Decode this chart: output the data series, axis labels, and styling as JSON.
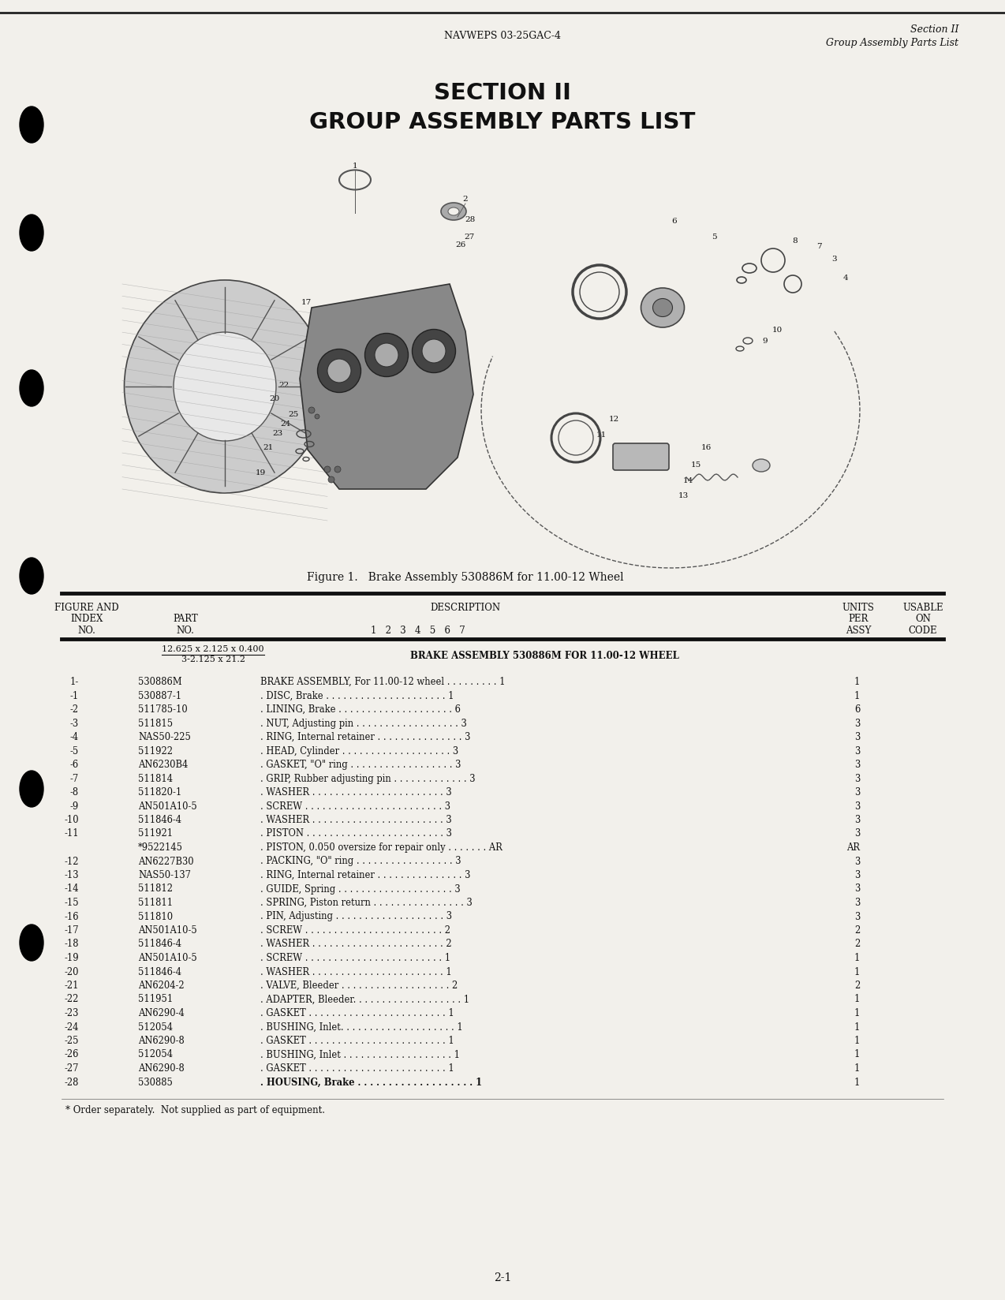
{
  "header_left": "NAVWEPS 03-25GAC-4",
  "header_right_line1": "Section II",
  "header_right_line2": "Group Assembly Parts List",
  "section_title_line1": "SECTION II",
  "section_title_line2": "GROUP ASSEMBLY PARTS LIST",
  "figure_caption": "Figure 1.   Brake Assembly 530886M for 11.00-12 Wheel",
  "table_col1_lines": [
    "FIGURE AND",
    "INDEX",
    "NO."
  ],
  "table_col2_lines": [
    "PART",
    "NO."
  ],
  "table_col3_line": "DESCRIPTION",
  "table_col3_sub": "1   2   3   4   5   6   7",
  "table_col4_lines": [
    "UNITS",
    "PER",
    "ASSY"
  ],
  "table_col5_lines": [
    "USABLE",
    "ON",
    "CODE"
  ],
  "assembly_header_line1": "12.625 x 2.125 x 0.400",
  "assembly_header_line2": "3-2.125 x 21.2",
  "assembly_header_desc": "BRAKE ASSEMBLY 530886M FOR 11.00-12 WHEEL",
  "parts": [
    {
      "index": "1-",
      "part": "530886M",
      "desc": "BRAKE ASSEMBLY, For 11.00-12 wheel . . . . . . . . . 1",
      "bold": false,
      "units": "1"
    },
    {
      "index": "-1",
      "part": "530887-1",
      "desc": ". DISC, Brake . . . . . . . . . . . . . . . . . . . . . 1",
      "bold": false,
      "units": "1"
    },
    {
      "index": "-2",
      "part": "511785-10",
      "desc": ". LINING, Brake . . . . . . . . . . . . . . . . . . . . 6",
      "bold": false,
      "units": "6"
    },
    {
      "index": "-3",
      "part": "511815",
      "desc": ". NUT, Adjusting pin . . . . . . . . . . . . . . . . . . 3",
      "bold": false,
      "units": "3"
    },
    {
      "index": "-4",
      "part": "NAS50-225",
      "desc": ". RING, Internal retainer . . . . . . . . . . . . . . . 3",
      "bold": false,
      "units": "3"
    },
    {
      "index": "-5",
      "part": "511922",
      "desc": ". HEAD, Cylinder . . . . . . . . . . . . . . . . . . . 3",
      "bold": false,
      "units": "3"
    },
    {
      "index": "-6",
      "part": "AN6230B4",
      "desc": ". GASKET, \"O\" ring . . . . . . . . . . . . . . . . . . 3",
      "bold": false,
      "units": "3"
    },
    {
      "index": "-7",
      "part": "511814",
      "desc": ". GRIP, Rubber adjusting pin . . . . . . . . . . . . . 3",
      "bold": false,
      "units": "3"
    },
    {
      "index": "-8",
      "part": "511820-1",
      "desc": ". WASHER . . . . . . . . . . . . . . . . . . . . . . . 3",
      "bold": false,
      "units": "3"
    },
    {
      "index": "-9",
      "part": "AN501A10-5",
      "desc": ". SCREW . . . . . . . . . . . . . . . . . . . . . . . . 3",
      "bold": false,
      "units": "3"
    },
    {
      "index": "-10",
      "part": "511846-4",
      "desc": ". WASHER . . . . . . . . . . . . . . . . . . . . . . . 3",
      "bold": false,
      "units": "3"
    },
    {
      "index": "-11",
      "part": "511921",
      "desc": ". PISTON . . . . . . . . . . . . . . . . . . . . . . . . 3",
      "bold": false,
      "units": "3"
    },
    {
      "index": "",
      "part": "*9522145",
      "desc": ". PISTON, 0.050 oversize for repair only . . . . . . . AR",
      "bold": false,
      "units": "AR"
    },
    {
      "index": "-12",
      "part": "AN6227B30",
      "desc": ". PACKING, \"O\" ring . . . . . . . . . . . . . . . . . 3",
      "bold": false,
      "units": "3"
    },
    {
      "index": "-13",
      "part": "NAS50-137",
      "desc": ". RING, Internal retainer . . . . . . . . . . . . . . . 3",
      "bold": false,
      "units": "3"
    },
    {
      "index": "-14",
      "part": "511812",
      "desc": ". GUIDE, Spring . . . . . . . . . . . . . . . . . . . . 3",
      "bold": false,
      "units": "3"
    },
    {
      "index": "-15",
      "part": "511811",
      "desc": ". SPRING, Piston return . . . . . . . . . . . . . . . . 3",
      "bold": false,
      "units": "3"
    },
    {
      "index": "-16",
      "part": "511810",
      "desc": ". PIN, Adjusting . . . . . . . . . . . . . . . . . . . 3",
      "bold": false,
      "units": "3"
    },
    {
      "index": "-17",
      "part": "AN501A10-5",
      "desc": ". SCREW . . . . . . . . . . . . . . . . . . . . . . . . 2",
      "bold": false,
      "units": "2"
    },
    {
      "index": "-18",
      "part": "511846-4",
      "desc": ". WASHER . . . . . . . . . . . . . . . . . . . . . . . 2",
      "bold": false,
      "units": "2"
    },
    {
      "index": "-19",
      "part": "AN501A10-5",
      "desc": ". SCREW . . . . . . . . . . . . . . . . . . . . . . . . 1",
      "bold": false,
      "units": "1"
    },
    {
      "index": "-20",
      "part": "511846-4",
      "desc": ". WASHER . . . . . . . . . . . . . . . . . . . . . . . 1",
      "bold": false,
      "units": "1"
    },
    {
      "index": "-21",
      "part": "AN6204-2",
      "desc": ". VALVE, Bleeder . . . . . . . . . . . . . . . . . . . 2",
      "bold": false,
      "units": "2"
    },
    {
      "index": "-22",
      "part": "511951",
      "desc": ". ADAPTER, Bleeder. . . . . . . . . . . . . . . . . . . 1",
      "bold": false,
      "units": "1"
    },
    {
      "index": "-23",
      "part": "AN6290-4",
      "desc": ". GASKET . . . . . . . . . . . . . . . . . . . . . . . . 1",
      "bold": false,
      "units": "1"
    },
    {
      "index": "-24",
      "part": "512054",
      "desc": ". BUSHING, Inlet. . . . . . . . . . . . . . . . . . . . 1",
      "bold": false,
      "units": "1"
    },
    {
      "index": "-25",
      "part": "AN6290-8",
      "desc": ". GASKET . . . . . . . . . . . . . . . . . . . . . . . . 1",
      "bold": false,
      "units": "1"
    },
    {
      "index": "-26",
      "part": "512054",
      "desc": ". BUSHING, Inlet . . . . . . . . . . . . . . . . . . . 1",
      "bold": false,
      "units": "1"
    },
    {
      "index": "-27",
      "part": "AN6290-8",
      "desc": ". GASKET . . . . . . . . . . . . . . . . . . . . . . . . 1",
      "bold": false,
      "units": "1"
    },
    {
      "index": "-28",
      "part": "530885",
      "desc": ". HOUSING, Brake . . . . . . . . . . . . . . . . . . . 1",
      "bold": true,
      "units": "1"
    }
  ],
  "footnote": "* Order separately.  Not supplied as part of equipment.",
  "page_number": "2-1",
  "bg_color": "#f2f0eb",
  "text_color": "#111111"
}
